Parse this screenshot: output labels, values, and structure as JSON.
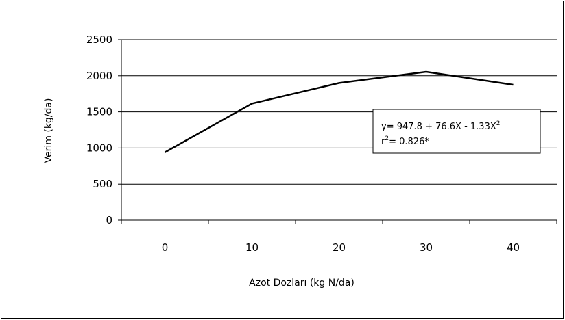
{
  "chart_data": {
    "type": "line",
    "x": [
      0,
      10,
      20,
      30,
      40
    ],
    "categories": [
      "0",
      "10",
      "20",
      "30",
      "40"
    ],
    "series": [
      {
        "values": [
          940,
          1615,
          1900,
          2055,
          1875
        ]
      }
    ],
    "xlabel": "Azot Dozları (kg N/da)",
    "ylabel": "Verim  (kg/da)",
    "ylim": [
      0,
      2500
    ],
    "yticks": [
      "0",
      "500",
      "1000",
      "1500",
      "2000",
      "2500"
    ],
    "grid": true,
    "annotation": {
      "line1_prefix": "y= 947.8 + 76.6X - 1.33X",
      "line1_sup": "2",
      "line2_prefix": "r",
      "line2_sup": "2",
      "line2_suffix": "= 0.826*"
    },
    "colors": {
      "line": "#000000",
      "grid": "#000000"
    }
  }
}
